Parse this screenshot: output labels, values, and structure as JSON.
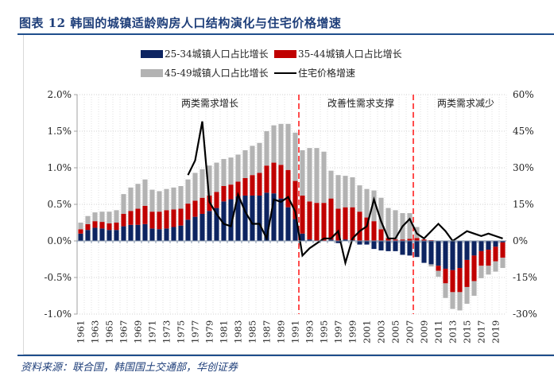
{
  "title": "图表 12   韩国的城镇适龄购房人口结构演化与住宅价格增速",
  "source": "资料来源：联合国，韩国国土交通部，华创证券",
  "chart_data": {
    "type": "bar",
    "subtype": "stacked-bar-with-line",
    "title": "韩国的城镇适龄购房人口结构演化与住宅价格增速",
    "categories": [
      1961,
      1962,
      1963,
      1964,
      1965,
      1966,
      1967,
      1968,
      1969,
      1970,
      1971,
      1972,
      1973,
      1974,
      1975,
      1976,
      1977,
      1978,
      1979,
      1980,
      1981,
      1982,
      1983,
      1984,
      1985,
      1986,
      1987,
      1988,
      1989,
      1990,
      1991,
      1992,
      1993,
      1994,
      1995,
      1996,
      1997,
      1998,
      1999,
      2000,
      2001,
      2002,
      2003,
      2004,
      2005,
      2006,
      2007,
      2008,
      2009,
      2010,
      2011,
      2012,
      2013,
      2014,
      2015,
      2016,
      2017,
      2018,
      2019,
      2020
    ],
    "x_tick_labels": [
      "1961",
      "1963",
      "1965",
      "1967",
      "1969",
      "1971",
      "1973",
      "1975",
      "1977",
      "1979",
      "1981",
      "1983",
      "1985",
      "1987",
      "1989",
      "1991",
      "1993",
      "1995",
      "1997",
      "1999",
      "2001",
      "2003",
      "2005",
      "2007",
      "2009",
      "2011",
      "2013",
      "2015",
      "2017",
      "2019"
    ],
    "series": [
      {
        "name": "25-34城镇人口占比增长",
        "axis": "left",
        "kind": "bar",
        "color": "#0d2461",
        "values": [
          0.1,
          0.15,
          0.18,
          0.17,
          0.15,
          0.15,
          0.2,
          0.22,
          0.22,
          0.23,
          0.17,
          0.16,
          0.17,
          0.19,
          0.21,
          0.29,
          0.33,
          0.37,
          0.41,
          0.45,
          0.54,
          0.57,
          0.61,
          0.62,
          0.62,
          0.62,
          0.66,
          0.65,
          0.58,
          0.46,
          0.3,
          0.1,
          0.02,
          0.0,
          0.0,
          0.02,
          -0.03,
          0.02,
          0.01,
          -0.05,
          -0.05,
          -0.11,
          -0.13,
          -0.14,
          -0.14,
          -0.19,
          -0.2,
          -0.22,
          -0.3,
          -0.32,
          -0.34,
          -0.38,
          -0.4,
          -0.37,
          -0.26,
          -0.2,
          -0.14,
          -0.12,
          -0.08,
          -0.02
        ]
      },
      {
        "name": "35-44城镇人口占比增长",
        "axis": "left",
        "kind": "bar",
        "color": "#c00000",
        "values": [
          0.06,
          0.08,
          0.09,
          0.09,
          0.09,
          0.1,
          0.17,
          0.19,
          0.22,
          0.25,
          0.23,
          0.24,
          0.25,
          0.24,
          0.23,
          0.22,
          0.22,
          0.22,
          0.21,
          0.22,
          0.21,
          0.2,
          0.2,
          0.24,
          0.28,
          0.31,
          0.37,
          0.42,
          0.46,
          0.51,
          0.52,
          0.52,
          0.52,
          0.52,
          0.52,
          0.56,
          0.44,
          0.44,
          0.45,
          0.4,
          0.32,
          0.27,
          0.16,
          0.04,
          0.02,
          0.02,
          0.03,
          0.04,
          0.02,
          0.01,
          -0.07,
          -0.2,
          -0.3,
          -0.33,
          -0.37,
          -0.35,
          -0.2,
          -0.22,
          -0.2,
          -0.21
        ]
      },
      {
        "name": "45-49城镇人口占比增长",
        "axis": "left",
        "kind": "bar",
        "color": "#b3b3b3",
        "values": [
          0.09,
          0.11,
          0.12,
          0.14,
          0.16,
          0.17,
          0.27,
          0.32,
          0.34,
          0.36,
          0.3,
          0.28,
          0.29,
          0.3,
          0.31,
          0.33,
          0.38,
          0.39,
          0.41,
          0.4,
          0.37,
          0.37,
          0.37,
          0.38,
          0.4,
          0.41,
          0.47,
          0.51,
          0.56,
          0.63,
          0.66,
          0.62,
          0.73,
          0.75,
          0.7,
          0.38,
          0.46,
          0.43,
          0.41,
          0.36,
          0.39,
          0.42,
          0.43,
          0.41,
          0.4,
          0.36,
          0.35,
          0.15,
          0.0,
          -0.03,
          -0.08,
          -0.2,
          -0.23,
          -0.25,
          -0.23,
          -0.2,
          -0.17,
          -0.12,
          -0.14,
          -0.14
        ]
      },
      {
        "name": "住宅价格增速",
        "axis": "right",
        "kind": "line",
        "color": "#000000",
        "values": [
          null,
          null,
          null,
          null,
          null,
          null,
          null,
          null,
          null,
          null,
          null,
          null,
          null,
          null,
          null,
          27,
          33,
          49,
          16,
          11,
          7,
          6,
          19,
          12,
          7,
          7,
          1,
          17,
          16,
          18,
          12,
          -6,
          -3,
          -1,
          1,
          1,
          4,
          -9,
          1,
          4,
          6,
          17,
          8,
          1,
          1,
          6,
          9,
          3,
          1,
          4,
          7,
          4,
          0,
          2,
          4,
          3,
          2,
          3,
          2,
          1
        ]
      }
    ],
    "left_axis": {
      "ylim": [
        -1.0,
        2.0
      ],
      "ticks": [
        "2.0%",
        "1.5%",
        "1.0%",
        "0.5%",
        "0.0%",
        "-0.5%",
        "-1.0%"
      ]
    },
    "right_axis": {
      "ylim": [
        -30,
        60
      ],
      "ticks": [
        "60%",
        "45%",
        "30%",
        "15%",
        "0%",
        "-15%",
        "-30%"
      ]
    },
    "phase_dividers": [
      1991.5,
      2007.5
    ],
    "annotations": [
      "两类需求增长",
      "改善性需求支撑",
      "两类需求减少"
    ],
    "legend": {
      "placement": "top",
      "entries": [
        "25-34城镇人口占比增长",
        "35-44城镇人口占比增长",
        "45-49城镇人口占比增长",
        "住宅价格增速"
      ]
    },
    "grid": true,
    "xlabel": "",
    "ylabel": ""
  }
}
